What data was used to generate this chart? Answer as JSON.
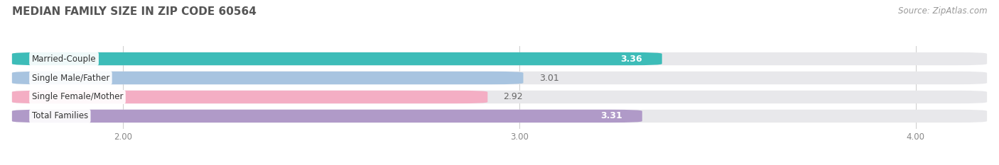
{
  "title": "MEDIAN FAMILY SIZE IN ZIP CODE 60564",
  "source": "Source: ZipAtlas.com",
  "categories": [
    "Married-Couple",
    "Single Male/Father",
    "Single Female/Mother",
    "Total Families"
  ],
  "values": [
    3.36,
    3.01,
    2.92,
    3.31
  ],
  "bar_colors": [
    "#3dbcb8",
    "#a8c4e0",
    "#f4aec4",
    "#b09ac8"
  ],
  "background_color": "#ffffff",
  "bar_bg_color": "#e8e8eb",
  "xlim_data": [
    1.72,
    4.18
  ],
  "xmin": 2.0,
  "xmax": 4.0,
  "xticks": [
    2.0,
    3.0,
    4.0
  ],
  "xtick_labels": [
    "2.00",
    "3.00",
    "4.00"
  ],
  "label_fontsize": 8.5,
  "value_fontsize": 9,
  "title_fontsize": 11,
  "source_fontsize": 8.5,
  "bar_height": 0.68,
  "bar_gap": 0.32,
  "value_white_indices": [
    0,
    3
  ],
  "value_white_color": "#ffffff",
  "value_dark_color": "#666666"
}
